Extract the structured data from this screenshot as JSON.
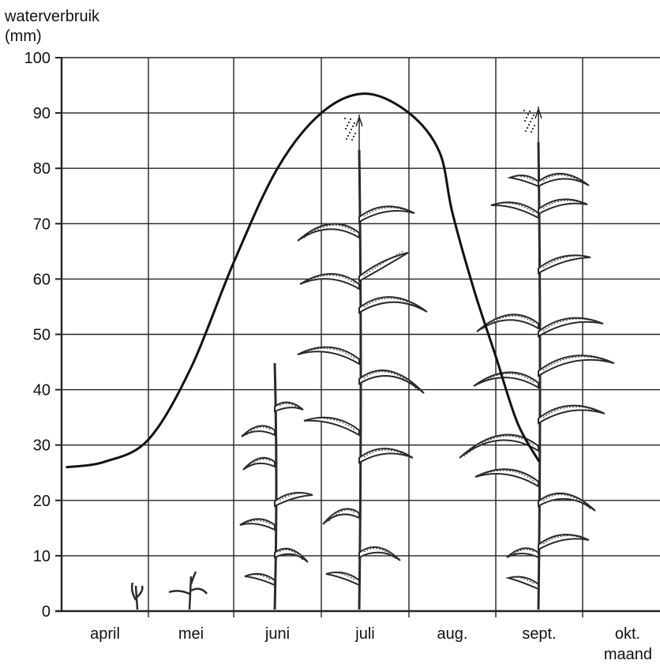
{
  "chart_data": {
    "type": "line",
    "ylabel_line1": "waterverbruik",
    "ylabel_line2": "(mm)",
    "xlabel": "maand",
    "ylim": [
      0,
      100
    ],
    "y_ticks": [
      "0",
      "10",
      "20",
      "30",
      "40",
      "50",
      "60",
      "70",
      "80",
      "90",
      "100"
    ],
    "months": [
      "april",
      "mei",
      "juni",
      "juli",
      "aug.",
      "sept.",
      "okt."
    ],
    "grid": true,
    "x": [
      0.05,
      0.5,
      1.0,
      1.5,
      2.0,
      2.5,
      3.0,
      3.5,
      4.0,
      4.35,
      4.5,
      4.75,
      5.0,
      5.25,
      5.5
    ],
    "values": [
      26,
      27,
      31,
      44,
      63,
      80,
      90,
      93.5,
      90,
      83,
      72,
      58,
      46,
      34,
      27
    ]
  },
  "colors": {
    "line": "#111111",
    "grid": "#222222",
    "plant": "#2a2a2a"
  },
  "illustrations": [
    "seedling",
    "seedling",
    "young-maize-plant",
    "maize-plant-tasseling",
    "mature-maize-plant"
  ]
}
